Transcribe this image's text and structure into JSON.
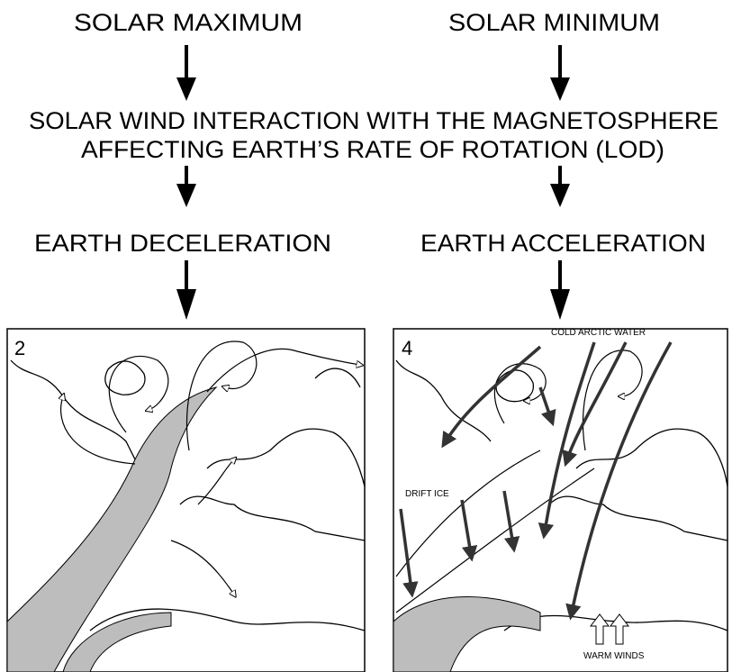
{
  "header": {
    "left": "SOLAR MAXIMUM",
    "right": "SOLAR MINIMUM"
  },
  "middle": {
    "line1": "SOLAR WIND INTERACTION WITH THE MAGNETOSPHERE",
    "line2": "AFFECTING EARTH’S RATE OF ROTATION (LOD)"
  },
  "outcomes": {
    "left": "EARTH DECELERATION",
    "right": "EARTH ACCELERATION"
  },
  "panels": [
    {
      "label": "2"
    },
    {
      "label": "4",
      "annotations": [
        "COLD ARCTIC WATER",
        "DRIFT ICE",
        "WARM WINDS"
      ]
    }
  ]
}
